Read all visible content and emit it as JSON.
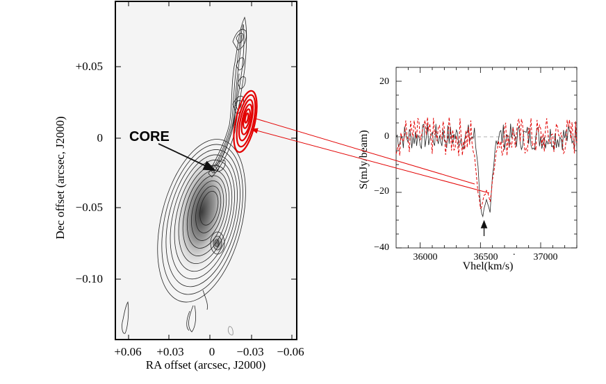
{
  "left_panel": {
    "xlabel": "RA offset (arcsec, J2000)",
    "ylabel": "Dec offset (arcsec, J2000)",
    "xticks": [
      "+0.06",
      "+0.03",
      "0",
      "−0.03",
      "−0.06"
    ],
    "yticks": [
      "+0.05",
      "0",
      "−0.05",
      "−0.10"
    ],
    "core_label": "CORE",
    "colors": {
      "contour": "#222222",
      "absorption_contour": "#e30000",
      "image_bg": "#f4f4f4"
    }
  },
  "right_panel": {
    "xlabel": "Vhel(km/s)",
    "ylabel": "S(mJy/beam)",
    "xticks": [
      "36000",
      "36500",
      "37000"
    ],
    "yticks": [
      "20",
      "0",
      "−20",
      "−40"
    ],
    "stray_dot": ".",
    "colors": {
      "spectrum_1": "#222222",
      "spectrum_2": "#e30000",
      "zero_line": "#999999"
    }
  },
  "chart_data": {
    "type": "line",
    "title": "",
    "xlabel": "Vhel(km/s)",
    "ylabel": "S(mJy/beam)",
    "xlim": [
      35800,
      37300
    ],
    "ylim": [
      -40,
      25
    ],
    "series": [
      {
        "name": "black spectrum (solid)",
        "style": "solid",
        "color": "#222222",
        "x": [
          36450,
          36480,
          36500,
          36520,
          36550,
          36580,
          36600,
          36630
        ],
        "y": [
          0,
          -10,
          -25,
          -28,
          -24,
          -28,
          -14,
          0
        ]
      },
      {
        "name": "red spectrum (dashed)",
        "style": "dashed",
        "color": "#e30000",
        "x": [
          36420,
          36460,
          36480,
          36500,
          36520,
          36550,
          36580,
          36620,
          36650
        ],
        "y": [
          0,
          -10,
          -20,
          -26,
          -22,
          -19,
          -22,
          -10,
          0
        ]
      }
    ],
    "noise_amplitude_mJy": 6,
    "marker_arrow_x": 36530
  }
}
